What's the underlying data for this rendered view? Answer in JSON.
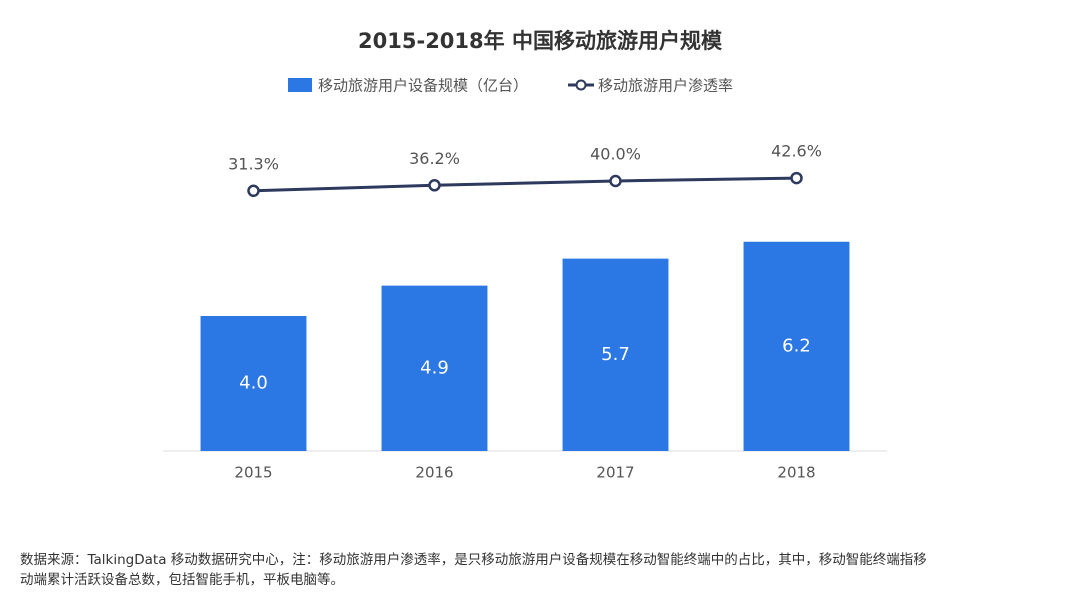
{
  "chart_data": {
    "type": "bar",
    "title": "2015-2018年 中国移动旅游用户规模",
    "categories": [
      "2015",
      "2016",
      "2017",
      "2018"
    ],
    "series": [
      {
        "name": "移动旅游用户设备规模（亿台）",
        "type": "bar",
        "color": "#2b78e4",
        "values": [
          4.0,
          4.9,
          5.7,
          6.2
        ],
        "value_labels": [
          "4.0",
          "4.9",
          "5.7",
          "6.2"
        ]
      },
      {
        "name": "移动旅游用户渗透率",
        "type": "line",
        "axis": "y2",
        "color": "#2d3a5e",
        "values": [
          31.3,
          36.2,
          40.0,
          42.6
        ],
        "value_labels": [
          "31.3%",
          "36.2%",
          "40.0%",
          "42.6%"
        ]
      }
    ],
    "ylim": [
      0,
      10
    ],
    "y2lim": [
      -200,
      100
    ],
    "footnote": [
      "数据来源：TalkingData 移动数据研究中心，注：移动旅游用户渗透率，是只移动旅游用户设备规模在移动智能终端中的占比，其中，移动智能终端指移",
      "动端累计活跃设备总数，包括智能手机，平板电脑等。"
    ]
  }
}
